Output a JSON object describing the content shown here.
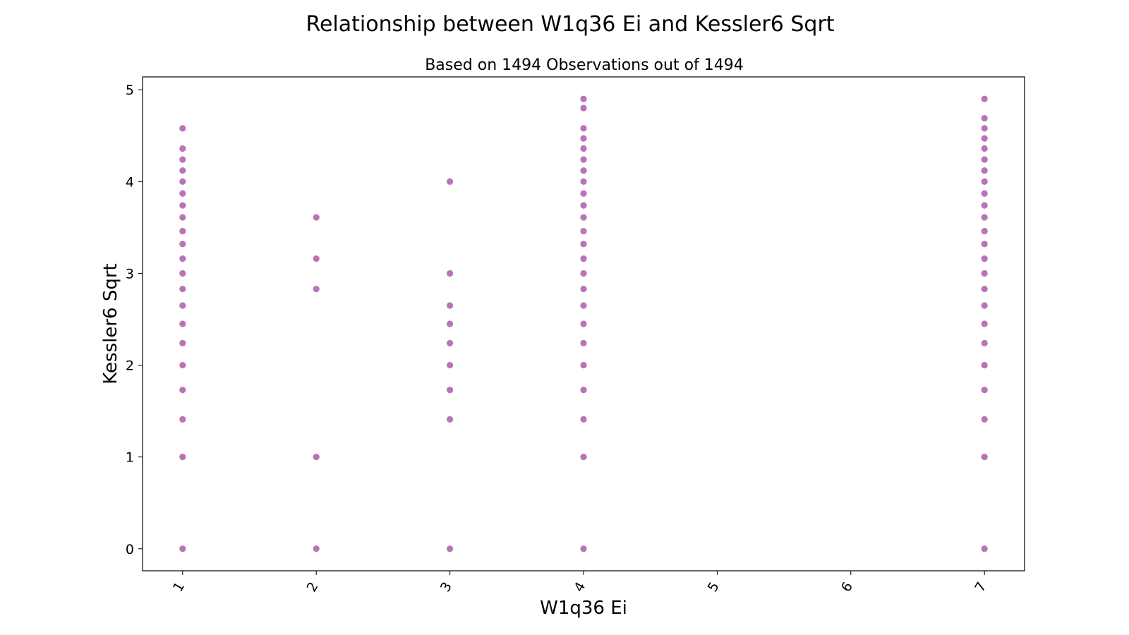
{
  "chart_data": {
    "type": "scatter",
    "title": "Relationship between W1q36 Ei and Kessler6 Sqrt",
    "subtitle": "Based on 1494 Observations out of 1494",
    "xlabel": "W1q36 Ei",
    "ylabel": "Kessler6 Sqrt",
    "xlim": [
      0.7,
      7.3
    ],
    "ylim": [
      -0.24,
      5.14
    ],
    "x_ticks": [
      1,
      2,
      3,
      4,
      5,
      6,
      7
    ],
    "y_ticks": [
      0,
      1,
      2,
      3,
      4,
      5
    ],
    "grid": false,
    "marker_color": "#800080",
    "series": [
      {
        "points": [
          {
            "x": 1,
            "y": [
              0,
              1,
              1.41,
              1.73,
              2,
              2.24,
              2.45,
              2.65,
              2.83,
              3,
              3.16,
              3.32,
              3.46,
              3.61,
              3.74,
              3.87,
              4,
              4.12,
              4.24,
              4.36,
              4.58
            ]
          },
          {
            "x": 2,
            "y": [
              0,
              1,
              2.83,
              3.16,
              3.61
            ]
          },
          {
            "x": 3,
            "y": [
              0,
              1.41,
              1.73,
              2,
              2.24,
              2.45,
              2.65,
              3,
              4
            ]
          },
          {
            "x": 4,
            "y": [
              0,
              1,
              1.41,
              1.73,
              2,
              2.24,
              2.45,
              2.65,
              2.83,
              3,
              3.16,
              3.32,
              3.46,
              3.61,
              3.74,
              3.87,
              4,
              4.12,
              4.24,
              4.36,
              4.47,
              4.58,
              4.8,
              4.9
            ]
          },
          {
            "x": 7,
            "y": [
              0,
              1,
              1.41,
              1.73,
              2,
              2.24,
              2.45,
              2.65,
              2.83,
              3,
              3.16,
              3.32,
              3.46,
              3.61,
              3.74,
              3.87,
              4,
              4.12,
              4.24,
              4.36,
              4.47,
              4.58,
              4.69,
              4.9
            ]
          }
        ]
      }
    ]
  }
}
